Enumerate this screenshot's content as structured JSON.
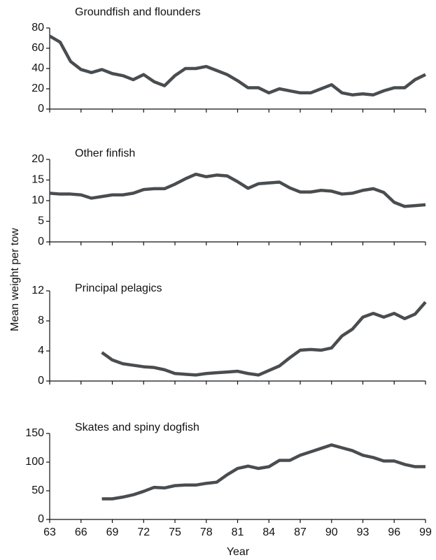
{
  "shared": {
    "xlabel": "Year",
    "ylabel": "Mean weight per tow"
  },
  "chart_data": [
    {
      "type": "line",
      "title": "Groundfish and flounders",
      "color": "#4a4d4f",
      "x": [
        63,
        64,
        65,
        66,
        67,
        68,
        69,
        70,
        71,
        72,
        73,
        74,
        75,
        76,
        77,
        78,
        79,
        80,
        81,
        82,
        83,
        84,
        85,
        86,
        87,
        88,
        89,
        90,
        91,
        92,
        93,
        94,
        95,
        96,
        97,
        98,
        99
      ],
      "values": [
        72,
        66,
        47,
        39,
        36,
        39,
        35,
        33,
        29,
        34,
        27,
        23,
        33,
        40,
        40,
        42,
        38,
        34,
        28,
        21,
        21,
        16,
        20,
        18,
        16,
        16,
        20,
        24,
        16,
        14,
        15,
        14,
        18,
        21,
        21,
        29,
        34
      ],
      "xlim": [
        63,
        99
      ],
      "ylim": [
        0,
        80
      ],
      "yticks": [
        0,
        20,
        40,
        60,
        80
      ]
    },
    {
      "type": "line",
      "title": "Other finfish",
      "color": "#4a4d4f",
      "x": [
        63,
        64,
        65,
        66,
        67,
        68,
        69,
        70,
        71,
        72,
        73,
        74,
        75,
        76,
        77,
        78,
        79,
        80,
        81,
        82,
        83,
        84,
        85,
        86,
        87,
        88,
        89,
        90,
        91,
        92,
        93,
        94,
        95,
        96,
        97,
        98,
        99
      ],
      "values": [
        11.8,
        11.6,
        11.6,
        11.4,
        10.6,
        11,
        11.4,
        11.4,
        11.8,
        12.7,
        12.9,
        12.9,
        14,
        15.3,
        16.4,
        15.8,
        16.2,
        16,
        14.6,
        13,
        14.1,
        14.3,
        14.5,
        13.1,
        12.1,
        12.1,
        12.5,
        12.3,
        11.6,
        11.8,
        12.5,
        12.9,
        12,
        9.6,
        8.6,
        8.8,
        9
      ],
      "xlim": [
        63,
        99
      ],
      "ylim": [
        0,
        20
      ],
      "yticks": [
        0,
        5,
        10,
        15,
        20
      ]
    },
    {
      "type": "line",
      "title": "Principal pelagics",
      "color": "#4a4d4f",
      "x": [
        68,
        69,
        70,
        71,
        72,
        73,
        74,
        75,
        76,
        77,
        78,
        79,
        80,
        81,
        82,
        83,
        84,
        85,
        86,
        87,
        88,
        89,
        90,
        91,
        92,
        93,
        94,
        95,
        96,
        97,
        98,
        99
      ],
      "values": [
        3.8,
        2.8,
        2.3,
        2.1,
        1.9,
        1.8,
        1.5,
        1,
        0.9,
        0.8,
        1,
        1.1,
        1.2,
        1.3,
        1,
        0.8,
        1.4,
        2,
        3.1,
        4.1,
        4.2,
        4.1,
        4.4,
        6,
        6.9,
        8.5,
        9,
        8.5,
        9,
        8.3,
        8.9,
        10.5
      ],
      "xlim": [
        63,
        99
      ],
      "ylim": [
        0,
        12
      ],
      "yticks": [
        0,
        4,
        8,
        12
      ]
    },
    {
      "type": "line",
      "title": "Skates and spiny dogfish",
      "color": "#4a4d4f",
      "x": [
        68,
        69,
        70,
        71,
        72,
        73,
        74,
        75,
        76,
        77,
        78,
        79,
        80,
        81,
        82,
        83,
        84,
        85,
        86,
        87,
        88,
        89,
        90,
        91,
        92,
        93,
        94,
        95,
        96,
        97,
        98,
        99
      ],
      "values": [
        36,
        36,
        39,
        43,
        49,
        56,
        55,
        59,
        60,
        60,
        63,
        65,
        78,
        89,
        93,
        89,
        92,
        103,
        103,
        112,
        118,
        124,
        130,
        125,
        120,
        112,
        108,
        102,
        102,
        96,
        92,
        92
      ],
      "xlim": [
        63,
        99
      ],
      "ylim": [
        0,
        150
      ],
      "yticks": [
        0,
        50,
        100,
        150
      ],
      "xticks": [
        63,
        66,
        69,
        72,
        75,
        78,
        81,
        84,
        87,
        90,
        93,
        96,
        99
      ]
    }
  ]
}
